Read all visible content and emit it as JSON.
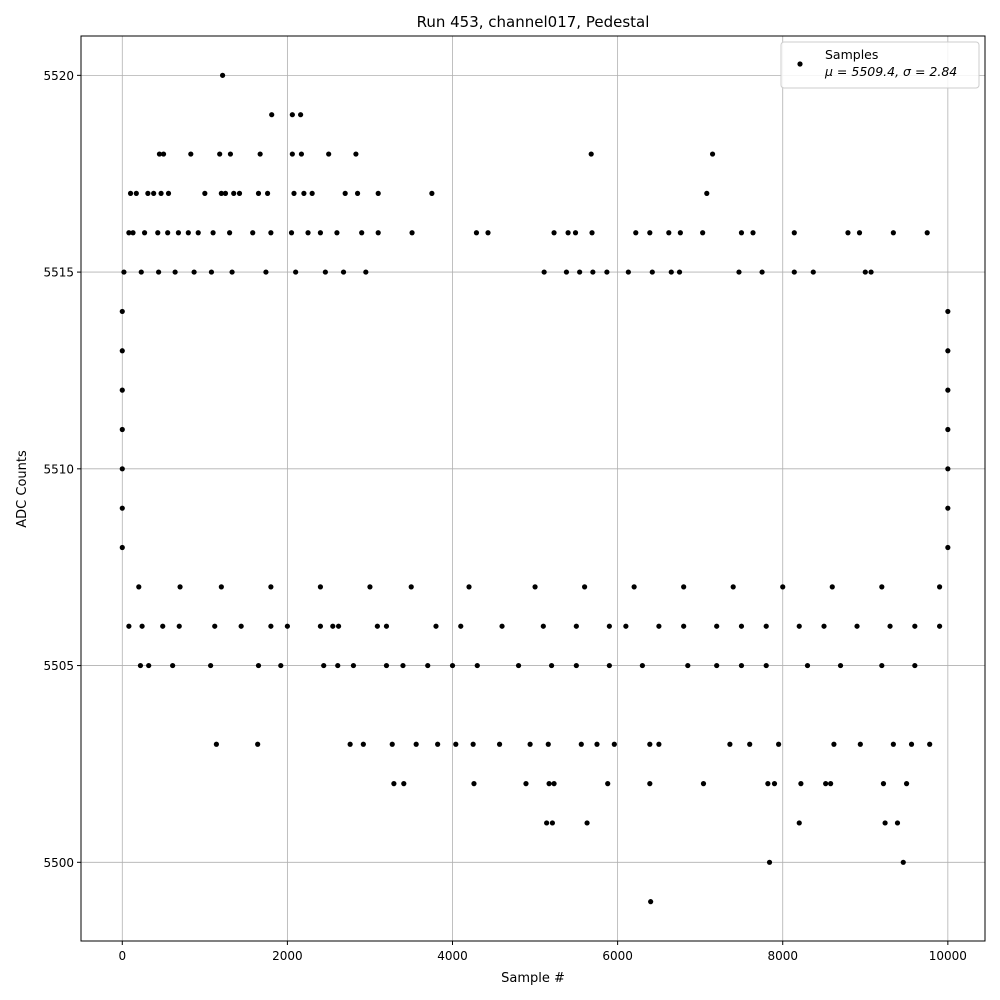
{
  "chart_data": {
    "type": "scatter",
    "title": "Run 453, channel017, Pedestal",
    "xlabel": "Sample #",
    "ylabel": "ADC Counts",
    "xlim": [
      -500,
      10450
    ],
    "ylim": [
      5498,
      5521
    ],
    "xticks": [
      0,
      2000,
      4000,
      6000,
      8000,
      10000
    ],
    "yticks": [
      5500,
      5505,
      5510,
      5515,
      5520
    ],
    "grid": true,
    "legend": {
      "placement": "top-right",
      "entries": [
        {
          "label": "Samples",
          "stats": "μ = 5509.4, σ = 2.84"
        }
      ]
    },
    "series": [
      {
        "name": "Samples",
        "color": "#000000",
        "x": [
          1215,
          1810,
          2060,
          2160,
          450,
          500,
          830,
          1180,
          1310,
          1670,
          2060,
          2170,
          2500,
          2830,
          5680,
          7150,
          100,
          170,
          310,
          380,
          470,
          560,
          1000,
          1200,
          1250,
          1350,
          1420,
          1650,
          1760,
          2080,
          2200,
          2300,
          2700,
          2850,
          3100,
          3750,
          7080,
          80,
          130,
          270,
          430,
          550,
          680,
          800,
          920,
          1100,
          1300,
          1580,
          1800,
          2050,
          2250,
          2400,
          2600,
          2900,
          3100,
          3510,
          4290,
          4430,
          5230,
          5400,
          5490,
          5690,
          6220,
          6390,
          6620,
          6760,
          7030,
          7500,
          7640,
          8140,
          8790,
          8930,
          9340,
          9750,
          20,
          230,
          440,
          640,
          870,
          1080,
          1330,
          1740,
          2100,
          2460,
          2680,
          2950,
          5110,
          5380,
          5540,
          5700,
          5870,
          6130,
          6420,
          6650,
          6750,
          7470,
          7750,
          8140,
          8370,
          9000,
          9070,
          0,
          10000,
          0,
          10000,
          0,
          10000,
          0,
          10000,
          0,
          10000,
          0,
          10000,
          0,
          10000,
          200,
          700,
          1200,
          1800,
          2400,
          3000,
          3500,
          4200,
          5000,
          5600,
          6200,
          6800,
          7400,
          8000,
          8600,
          9200,
          9900,
          80,
          240,
          490,
          690,
          1120,
          1440,
          1800,
          2000,
          2400,
          2550,
          2620,
          3090,
          3200,
          3800,
          4100,
          4600,
          5100,
          5500,
          5900,
          6100,
          6500,
          6800,
          7200,
          7500,
          7800,
          8200,
          8500,
          8900,
          9300,
          9600,
          9900,
          220,
          320,
          610,
          1070,
          1650,
          1920,
          2440,
          2610,
          2800,
          3200,
          3400,
          3700,
          4000,
          4300,
          4800,
          5200,
          5500,
          5900,
          6300,
          6850,
          7200,
          7500,
          7800,
          8300,
          8700,
          9200,
          9600,
          1140,
          1640,
          2760,
          2920,
          3270,
          3560,
          3820,
          4040,
          4250,
          4570,
          4940,
          5160,
          5560,
          5750,
          5960,
          6390,
          6500,
          7360,
          7600,
          7950,
          8620,
          8940,
          9340,
          9560,
          9780,
          3290,
          3410,
          4260,
          4890,
          5170,
          5230,
          5880,
          6390,
          7040,
          7820,
          7900,
          8220,
          8520,
          8580,
          9220,
          9500,
          5140,
          5210,
          5630,
          8200,
          9240,
          9390,
          7840,
          9460,
          6400
        ],
        "y": [
          5520,
          5519,
          5519,
          5519,
          5518,
          5518,
          5518,
          5518,
          5518,
          5518,
          5518,
          5518,
          5518,
          5518,
          5518,
          5518,
          5517,
          5517,
          5517,
          5517,
          5517,
          5517,
          5517,
          5517,
          5517,
          5517,
          5517,
          5517,
          5517,
          5517,
          5517,
          5517,
          5517,
          5517,
          5517,
          5517,
          5517,
          5516,
          5516,
          5516,
          5516,
          5516,
          5516,
          5516,
          5516,
          5516,
          5516,
          5516,
          5516,
          5516,
          5516,
          5516,
          5516,
          5516,
          5516,
          5516,
          5516,
          5516,
          5516,
          5516,
          5516,
          5516,
          5516,
          5516,
          5516,
          5516,
          5516,
          5516,
          5516,
          5516,
          5516,
          5516,
          5516,
          5516,
          5515,
          5515,
          5515,
          5515,
          5515,
          5515,
          5515,
          5515,
          5515,
          5515,
          5515,
          5515,
          5515,
          5515,
          5515,
          5515,
          5515,
          5515,
          5515,
          5515,
          5515,
          5515,
          5515,
          5515,
          5515,
          5515,
          5515,
          5514,
          5514,
          5513,
          5513,
          5512,
          5512,
          5511,
          5511,
          5510,
          5510,
          5509,
          5509,
          5508,
          5508,
          5507,
          5507,
          5507,
          5507,
          5507,
          5507,
          5507,
          5507,
          5507,
          5507,
          5507,
          5507,
          5507,
          5507,
          5507,
          5507,
          5507,
          5506,
          5506,
          5506,
          5506,
          5506,
          5506,
          5506,
          5506,
          5506,
          5506,
          5506,
          5506,
          5506,
          5506,
          5506,
          5506,
          5506,
          5506,
          5506,
          5506,
          5506,
          5506,
          5506,
          5506,
          5506,
          5506,
          5506,
          5506,
          5506,
          5506,
          5506,
          5505,
          5505,
          5505,
          5505,
          5505,
          5505,
          5505,
          5505,
          5505,
          5505,
          5505,
          5505,
          5505,
          5505,
          5505,
          5505,
          5505,
          5505,
          5505,
          5505,
          5505,
          5505,
          5505,
          5505,
          5505,
          5505,
          5505,
          5503,
          5503,
          5503,
          5503,
          5503,
          5503,
          5503,
          5503,
          5503,
          5503,
          5503,
          5503,
          5503,
          5503,
          5503,
          5503,
          5503,
          5503,
          5503,
          5503,
          5503,
          5503,
          5503,
          5503,
          5503,
          5502,
          5502,
          5502,
          5502,
          5502,
          5502,
          5502,
          5502,
          5502,
          5502,
          5502,
          5502,
          5502,
          5502,
          5502,
          5502,
          5501,
          5501,
          5501,
          5501,
          5501,
          5501,
          5500,
          5500,
          5499
        ]
      }
    ]
  }
}
